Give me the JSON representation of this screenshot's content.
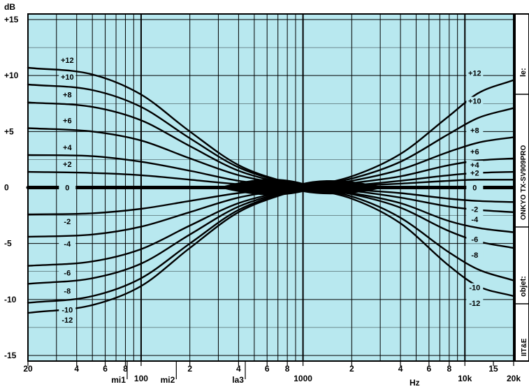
{
  "chart_data": {
    "type": "line",
    "title": "",
    "ylabel": "dB",
    "xlabel": "Hz",
    "x_scale": "log",
    "xlim": [
      20,
      20000
    ],
    "ylim": [
      -15.5,
      15.5
    ],
    "grid": true,
    "colors": {
      "plot_background": "#b8e8ef",
      "grid": "#000000",
      "curve": "#000000"
    },
    "y_ticks": [
      {
        "label": "+15",
        "value": 15
      },
      {
        "label": "+10",
        "value": 10
      },
      {
        "label": "+5",
        "value": 5
      },
      {
        "label": "0",
        "value": 0
      },
      {
        "label": "-5",
        "value": -5
      },
      {
        "label": "-10",
        "value": -10
      },
      {
        "label": "-15",
        "value": -15
      }
    ],
    "x_ticks": [
      {
        "label": "20",
        "value": 20
      },
      {
        "label": "4",
        "value": 40
      },
      {
        "label": "6",
        "value": 60
      },
      {
        "label": "8",
        "value": 80
      },
      {
        "label": "100",
        "value": 100
      },
      {
        "label": "2",
        "value": 200
      },
      {
        "label": "4",
        "value": 400
      },
      {
        "label": "6",
        "value": 600
      },
      {
        "label": "8",
        "value": 800
      },
      {
        "label": "1000",
        "value": 1000
      },
      {
        "label": "2",
        "value": 2000
      },
      {
        "label": "4",
        "value": 4000
      },
      {
        "label": "6",
        "value": 6000
      },
      {
        "label": "8",
        "value": 8000
      },
      {
        "label": "10k",
        "value": 10000
      },
      {
        "label": "15",
        "value": 15000
      },
      {
        "label": "20k",
        "value": 20000
      }
    ],
    "note_ticks": [
      {
        "label": "mi1",
        "value": 82
      },
      {
        "label": "mi2",
        "value": 165
      },
      {
        "label": "la3",
        "value": 440
      }
    ],
    "series": [
      {
        "name": "+12",
        "x": [
          20,
          50,
          100,
          200,
          400,
          1000
        ],
        "y": [
          10.7,
          10.1,
          8.3,
          5.0,
          2.0,
          0
        ]
      },
      {
        "name": "+10",
        "x": [
          20,
          50,
          100,
          200,
          400,
          1000
        ],
        "y": [
          9.2,
          8.7,
          7.2,
          4.4,
          1.8,
          0
        ]
      },
      {
        "name": "+8",
        "x": [
          20,
          50,
          100,
          200,
          400,
          1000
        ],
        "y": [
          7.6,
          7.2,
          6.0,
          3.7,
          1.5,
          0
        ]
      },
      {
        "name": "+6",
        "x": [
          20,
          50,
          100,
          200,
          400,
          1000
        ],
        "y": [
          5.3,
          5.0,
          4.2,
          2.6,
          1.1,
          0
        ]
      },
      {
        "name": "+4",
        "x": [
          20,
          50,
          100,
          200,
          400,
          1000
        ],
        "y": [
          2.9,
          2.8,
          2.3,
          1.5,
          0.6,
          0
        ]
      },
      {
        "name": "+2",
        "x": [
          20,
          50,
          100,
          200,
          400,
          1000
        ],
        "y": [
          1.4,
          1.3,
          1.1,
          0.7,
          0.3,
          0
        ]
      },
      {
        "name": "0",
        "x": [
          20,
          1000
        ],
        "y": [
          0,
          0
        ]
      },
      {
        "name": "-2",
        "x": [
          20,
          50,
          100,
          200,
          400,
          1000
        ],
        "y": [
          -2.4,
          -2.3,
          -1.9,
          -1.2,
          -0.5,
          0
        ]
      },
      {
        "name": "-4",
        "x": [
          20,
          50,
          100,
          200,
          400,
          1000
        ],
        "y": [
          -4.4,
          -4.2,
          -3.5,
          -2.2,
          -0.9,
          0
        ]
      },
      {
        "name": "-6",
        "x": [
          20,
          50,
          100,
          200,
          400,
          1000
        ],
        "y": [
          -7.0,
          -6.6,
          -5.5,
          -3.4,
          -1.4,
          0
        ]
      },
      {
        "name": "-8",
        "x": [
          20,
          50,
          100,
          200,
          400,
          1000
        ],
        "y": [
          -8.6,
          -8.1,
          -6.8,
          -4.2,
          -1.7,
          0
        ]
      },
      {
        "name": "-10",
        "x": [
          20,
          50,
          100,
          200,
          400,
          1000
        ],
        "y": [
          -10.3,
          -9.7,
          -8.1,
          -5.0,
          -2.0,
          0
        ]
      },
      {
        "name": "-12",
        "x": [
          20,
          50,
          100,
          200,
          400,
          1000
        ],
        "y": [
          -11.2,
          -10.5,
          -8.8,
          -5.4,
          -2.2,
          0
        ]
      },
      {
        "name": "+12",
        "x": [
          1000,
          2000,
          4000,
          8000,
          12000,
          20000
        ],
        "y": [
          0,
          1.0,
          3.0,
          6.4,
          8.4,
          9.6
        ]
      },
      {
        "name": "+10",
        "x": [
          1000,
          2000,
          4000,
          8000,
          12000,
          20000
        ],
        "y": [
          0,
          0.8,
          2.3,
          4.8,
          6.2,
          7.1
        ]
      },
      {
        "name": "+8",
        "x": [
          1000,
          2000,
          4000,
          8000,
          12000,
          20000
        ],
        "y": [
          0,
          0.6,
          1.6,
          3.2,
          4.0,
          4.5
        ]
      },
      {
        "name": "+6",
        "x": [
          1000,
          2000,
          4000,
          8000,
          12000,
          20000
        ],
        "y": [
          0,
          0.4,
          1.0,
          2.0,
          2.4,
          2.6
        ]
      },
      {
        "name": "+4",
        "x": [
          1000,
          2000,
          4000,
          8000,
          12000,
          20000
        ],
        "y": [
          0,
          0.2,
          0.6,
          1.1,
          1.3,
          1.4
        ]
      },
      {
        "name": "+2",
        "x": [
          1000,
          2000,
          4000,
          8000,
          12000,
          20000
        ],
        "y": [
          0,
          0.15,
          0.35,
          0.6,
          0.7,
          0.7
        ]
      },
      {
        "name": "0",
        "x": [
          1000,
          20000
        ],
        "y": [
          0,
          0
        ]
      },
      {
        "name": "-2",
        "x": [
          1000,
          2000,
          4000,
          8000,
          12000,
          20000
        ],
        "y": [
          0,
          -0.2,
          -0.5,
          -1.0,
          -1.2,
          -1.3
        ]
      },
      {
        "name": "-4",
        "x": [
          1000,
          2000,
          4000,
          8000,
          12000,
          20000
        ],
        "y": [
          0,
          -0.3,
          -0.9,
          -1.7,
          -2.0,
          -2.2
        ]
      },
      {
        "name": "-6",
        "x": [
          1000,
          2000,
          4000,
          8000,
          12000,
          20000
        ],
        "y": [
          0,
          -0.5,
          -1.4,
          -3.0,
          -3.6,
          -4.0
        ]
      },
      {
        "name": "-8",
        "x": [
          1000,
          2000,
          4000,
          8000,
          12000,
          20000
        ],
        "y": [
          0,
          -0.6,
          -1.8,
          -3.9,
          -4.8,
          -5.4
        ]
      },
      {
        "name": "-10",
        "x": [
          1000,
          2000,
          4000,
          8000,
          12000,
          20000
        ],
        "y": [
          0,
          -0.8,
          -2.7,
          -5.8,
          -7.3,
          -8.3
        ]
      },
      {
        "name": "-12",
        "x": [
          1000,
          2000,
          4000,
          8000,
          12000,
          20000
        ],
        "y": [
          0,
          -1.0,
          -3.2,
          -7.0,
          -8.8,
          -9.7
        ]
      }
    ],
    "sidebar": {
      "device": "ONKYO TX-SV909PRO",
      "field_top": "le:",
      "field_bottom": "objet:",
      "logo": "IIT&E"
    }
  }
}
